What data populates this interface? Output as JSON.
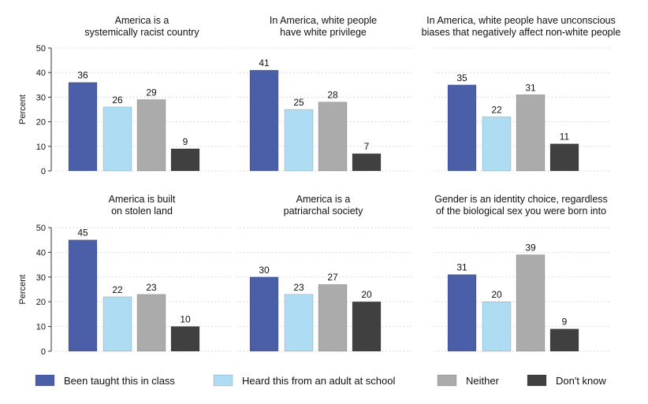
{
  "chart_data": {
    "type": "bar",
    "ylabel": "Percent",
    "ylim": [
      0,
      50
    ],
    "yticks": [
      0,
      10,
      20,
      30,
      40,
      50
    ],
    "grid": true,
    "legend_position": "bottom",
    "series": [
      {
        "name": "Been taught this in class",
        "color": "#4a5fa8"
      },
      {
        "name": "Heard this from an adult at school",
        "color": "#aedcf3"
      },
      {
        "name": "Neither",
        "color": "#ababab"
      },
      {
        "name": "Don't know",
        "color": "#404040"
      }
    ],
    "panels": [
      {
        "title": [
          "America is a",
          "systemically racist country"
        ],
        "values": [
          36,
          26,
          29,
          9
        ]
      },
      {
        "title": [
          "In America, white people",
          "have white privilege"
        ],
        "values": [
          41,
          25,
          28,
          7
        ]
      },
      {
        "title": [
          "In America, white people have unconscious",
          "biases that negatively affect non-white people"
        ],
        "values": [
          35,
          22,
          31,
          11
        ]
      },
      {
        "title": [
          "America is built",
          "on stolen land"
        ],
        "values": [
          45,
          22,
          23,
          10
        ]
      },
      {
        "title": [
          "America is a",
          "patriarchal society"
        ],
        "values": [
          30,
          23,
          27,
          20
        ]
      },
      {
        "title": [
          "Gender is an identity choice, regardless",
          "of the biological sex you were born into"
        ],
        "values": [
          31,
          20,
          39,
          9
        ]
      }
    ]
  }
}
